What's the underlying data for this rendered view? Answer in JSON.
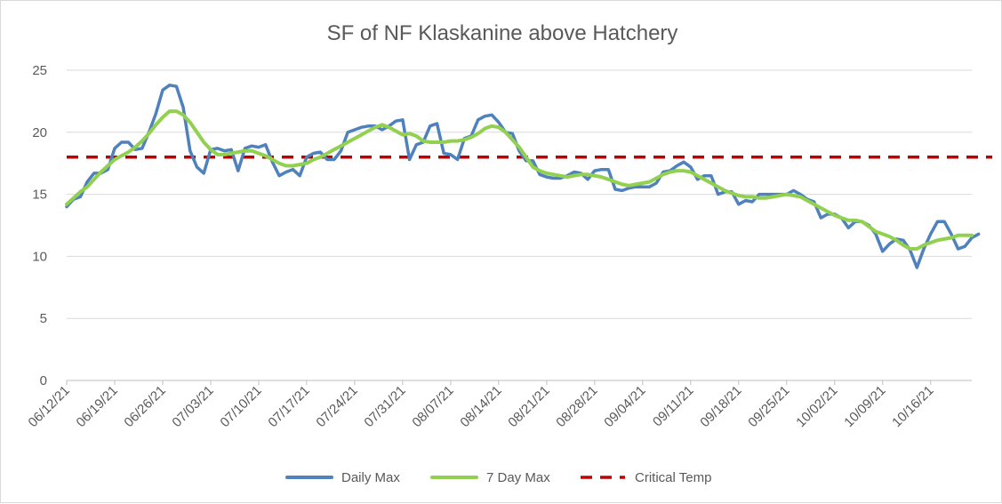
{
  "chart_data": {
    "type": "line",
    "title": "SF of NF Klaskanine above Hatchery",
    "xlabel": "",
    "ylabel": "",
    "ylim": [
      0,
      25
    ],
    "yticks": [
      0,
      5,
      10,
      15,
      20,
      25
    ],
    "xlim": [
      "06/12/21",
      "10/22/21"
    ],
    "xticks": [
      "06/12/21",
      "06/19/21",
      "06/26/21",
      "07/03/21",
      "07/10/21",
      "07/17/21",
      "07/24/21",
      "07/31/21",
      "08/07/21",
      "08/14/21",
      "08/21/21",
      "08/28/21",
      "09/04/21",
      "09/11/21",
      "09/18/21",
      "09/25/21",
      "10/02/21",
      "10/09/21",
      "10/16/21"
    ],
    "grid": true,
    "legend": "bottom",
    "series": [
      {
        "name": "Daily Max",
        "color": "#4f81bd",
        "x_start": "06/12/21",
        "x_step_days": 1,
        "values": [
          14.0,
          14.6,
          14.8,
          16.0,
          16.7,
          16.7,
          17.0,
          18.7,
          19.2,
          19.2,
          18.6,
          18.7,
          20.0,
          21.5,
          23.4,
          23.8,
          23.7,
          22.0,
          18.5,
          17.2,
          16.7,
          18.6,
          18.7,
          18.5,
          18.6,
          16.9,
          18.7,
          18.9,
          18.8,
          19.0,
          17.6,
          16.5,
          16.8,
          17.0,
          16.5,
          18.0,
          18.3,
          18.4,
          17.8,
          17.8,
          18.5,
          20.0,
          20.2,
          20.4,
          20.5,
          20.5,
          20.2,
          20.5,
          20.9,
          21.0,
          17.8,
          19.0,
          19.2,
          20.5,
          20.7,
          18.3,
          18.2,
          17.8,
          19.5,
          19.7,
          21.0,
          21.3,
          21.4,
          20.8,
          20.0,
          19.9,
          18.5,
          17.7,
          17.7,
          16.6,
          16.4,
          16.3,
          16.3,
          16.5,
          16.8,
          16.7,
          16.2,
          16.9,
          17.0,
          17.0,
          15.4,
          15.3,
          15.5,
          15.6,
          15.6,
          15.6,
          15.9,
          16.8,
          16.9,
          17.3,
          17.6,
          17.2,
          16.2,
          16.5,
          16.5,
          15.0,
          15.2,
          15.2,
          14.2,
          14.5,
          14.4,
          15.0,
          15.0,
          15.0,
          15.0,
          15.0,
          15.3,
          15.0,
          14.6,
          14.4,
          13.1,
          13.4,
          13.4,
          13.1,
          12.3,
          12.8,
          12.8,
          12.5,
          11.8,
          10.4,
          11.0,
          11.4,
          11.3,
          10.5,
          9.1,
          10.6,
          11.8,
          12.8,
          12.8,
          11.8,
          10.6,
          10.8,
          11.5,
          11.8
        ]
      },
      {
        "name": "7 Day Max",
        "color": "#92d050",
        "x_start": "06/12/21",
        "x_step_days": 1,
        "values": [
          14.2,
          14.7,
          15.2,
          15.6,
          16.2,
          16.8,
          17.3,
          17.8,
          18.1,
          18.4,
          18.8,
          19.3,
          19.9,
          20.6,
          21.2,
          21.7,
          21.7,
          21.4,
          20.8,
          20.0,
          19.2,
          18.6,
          18.2,
          18.2,
          18.3,
          18.4,
          18.5,
          18.5,
          18.3,
          18.1,
          17.8,
          17.5,
          17.3,
          17.3,
          17.4,
          17.5,
          17.8,
          18.0,
          18.3,
          18.6,
          18.9,
          19.2,
          19.5,
          19.8,
          20.1,
          20.4,
          20.6,
          20.4,
          20.1,
          19.8,
          19.9,
          19.7,
          19.3,
          19.2,
          19.2,
          19.2,
          19.3,
          19.3,
          19.4,
          19.6,
          19.9,
          20.3,
          20.5,
          20.4,
          20.0,
          19.4,
          18.8,
          18.0,
          17.2,
          16.9,
          16.7,
          16.6,
          16.5,
          16.4,
          16.5,
          16.6,
          16.6,
          16.5,
          16.4,
          16.2,
          16.0,
          15.8,
          15.7,
          15.8,
          15.9,
          16.0,
          16.3,
          16.6,
          16.8,
          16.9,
          16.9,
          16.8,
          16.5,
          16.2,
          15.9,
          15.6,
          15.3,
          15.1,
          14.9,
          14.8,
          14.8,
          14.7,
          14.7,
          14.8,
          14.9,
          15.0,
          14.9,
          14.8,
          14.5,
          14.2,
          13.9,
          13.6,
          13.3,
          13.1,
          12.9,
          12.9,
          12.8,
          12.4,
          12.0,
          11.8,
          11.6,
          11.3,
          10.9,
          10.6,
          10.6,
          10.9,
          11.1,
          11.3,
          11.4,
          11.5,
          11.7,
          11.7,
          11.7
        ]
      },
      {
        "name": "Critical Temp",
        "color": "#c00000",
        "x_start": "06/12/21",
        "x_step_days": 1,
        "constant": 18,
        "count": 136
      }
    ]
  }
}
